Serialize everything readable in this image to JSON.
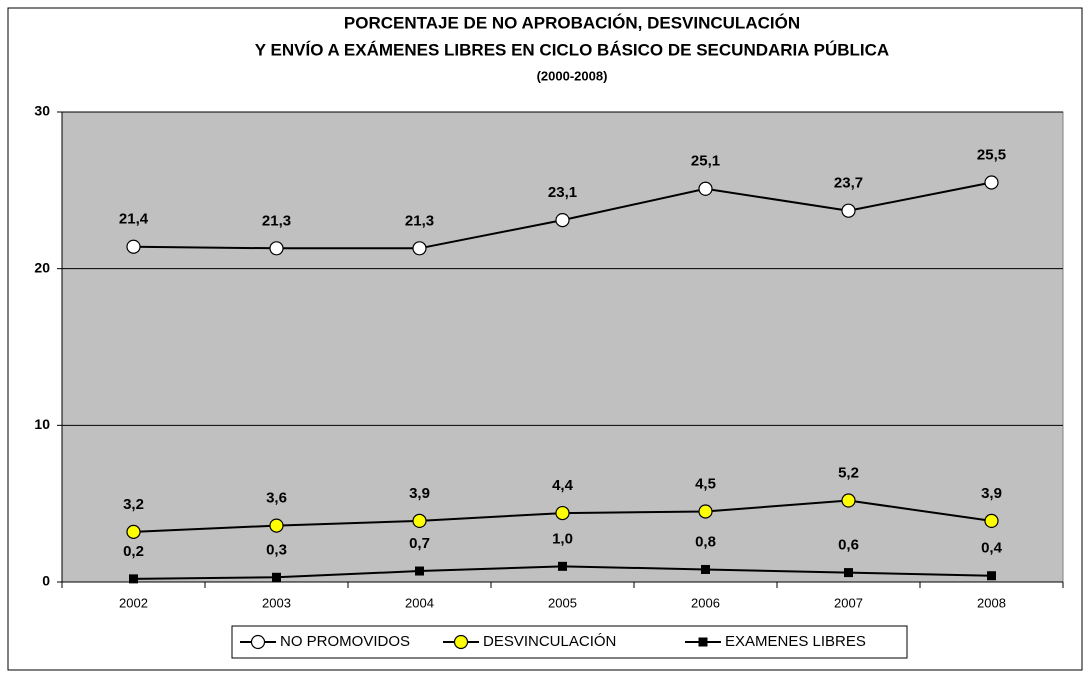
{
  "chart_data": {
    "type": "line",
    "title": [
      "PORCENTAJE DE NO APROBACIÓN, DESVINCULACIÓN",
      "Y ENVÍO A EXÁMENES LIBRES EN CICLO BÁSICO DE SECUNDARIA PÚBLICA"
    ],
    "subtitle": "(2000-2008)",
    "categories": [
      "2002",
      "2003",
      "2004",
      "2005",
      "2006",
      "2007",
      "2008"
    ],
    "series": [
      {
        "name": "NO PROMOVIDOS",
        "color": "#000000",
        "marker": "circle",
        "marker_fill": "#ffffff",
        "values": [
          21.4,
          21.3,
          21.3,
          23.1,
          25.1,
          23.7,
          25.5
        ],
        "value_labels": [
          "21,4",
          "21,3",
          "21,3",
          "23,1",
          "25,1",
          "23,7",
          "25,5"
        ]
      },
      {
        "name": "DESVINCULACIÓN",
        "color": "#000000",
        "marker": "circle",
        "marker_fill": "#ffff00",
        "values": [
          3.2,
          3.6,
          3.9,
          4.4,
          4.5,
          5.2,
          3.9
        ],
        "value_labels": [
          "3,2",
          "3,6",
          "3,9",
          "4,4",
          "4,5",
          "5,2",
          "3,9"
        ]
      },
      {
        "name": "EXAMENES LIBRES",
        "color": "#000000",
        "marker": "square",
        "marker_fill": "#000000",
        "values": [
          0.2,
          0.3,
          0.7,
          1.0,
          0.8,
          0.6,
          0.4
        ],
        "value_labels": [
          "0,2",
          "0,3",
          "0,7",
          "1,0",
          "0,8",
          "0,6",
          "0,4"
        ]
      }
    ],
    "ylim": [
      0,
      30
    ],
    "yticks": [
      0,
      10,
      20,
      30
    ],
    "grid": true,
    "plot_background": "#c0c0c0",
    "legend": "bottom"
  }
}
